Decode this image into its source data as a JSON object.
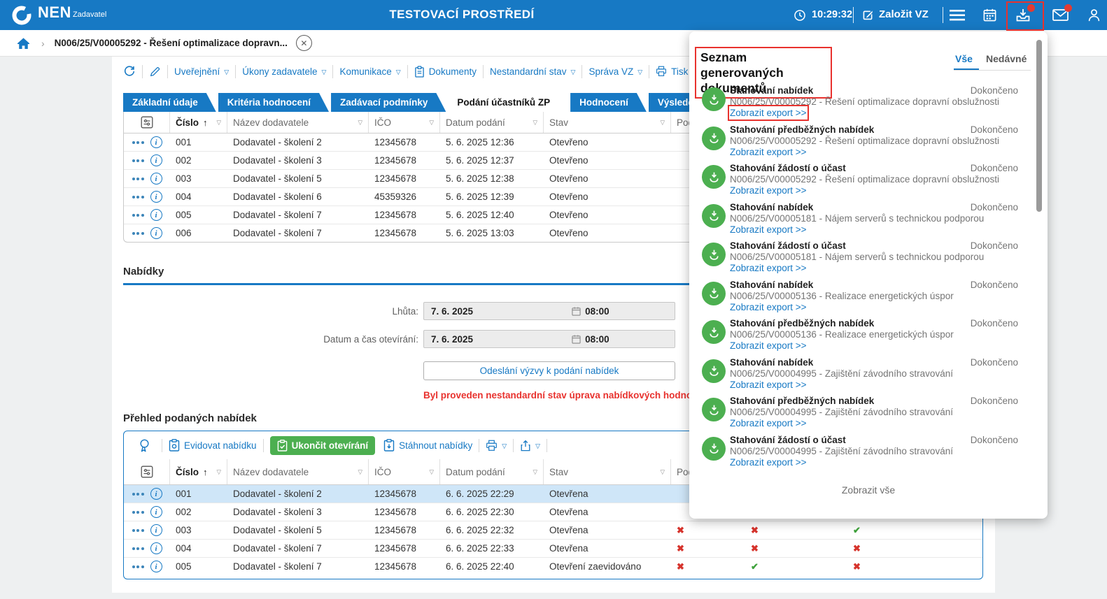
{
  "colors": {
    "accent_blue": "#1779c4",
    "green": "#4caf50",
    "red_annotation": "#e8322e",
    "red_mark": "#d6332c",
    "green_mark": "#3fa23c",
    "selected_row": "#cfe6f8"
  },
  "header": {
    "logo": "NEN",
    "logo_sub": "Zadavatel",
    "env_title": "TESTOVACÍ PROSTŘEDÍ",
    "time": "10:29:32",
    "create_vz_label": "Založit VZ"
  },
  "breadcrumb": {
    "item": "N006/25/V00005292 - Řešení optimalizace dopravn...",
    "chevron": "›"
  },
  "menu": {
    "items": [
      "Uveřejnění",
      "Úkony zadavatele",
      "Komunikace",
      "Dokumenty",
      "Nestandardní stav",
      "Správa VZ",
      "Tisk záznamu"
    ]
  },
  "tabs": [
    {
      "label": "Základní údaje",
      "active": false
    },
    {
      "label": "Kritéria hodnocení",
      "active": false
    },
    {
      "label": "Zadávací podmínky",
      "active": false
    },
    {
      "label": "Podání účastníků ZP",
      "active": true
    },
    {
      "label": "Hodnocení",
      "active": false
    },
    {
      "label": "Výsledek z",
      "active": false
    }
  ],
  "table1": {
    "columns": [
      {
        "label": "Číslo"
      },
      {
        "label": "Název dodavatele"
      },
      {
        "label": "IČO"
      },
      {
        "label": "Datum podání"
      },
      {
        "label": "Stav"
      },
      {
        "label": "Podaná"
      }
    ],
    "rows": [
      {
        "num": "001",
        "name": "Dodavatel - školení 2",
        "ico": "12345678",
        "date": "5. 6. 2025 12:36",
        "status": "Otevřeno",
        "selected": false,
        "marks": [
          null,
          null,
          null
        ]
      },
      {
        "num": "002",
        "name": "Dodavatel - školení 3",
        "ico": "12345678",
        "date": "5. 6. 2025 12:37",
        "status": "Otevřeno",
        "selected": false,
        "marks": [
          null,
          null,
          null
        ]
      },
      {
        "num": "003",
        "name": "Dodavatel - školení 5",
        "ico": "12345678",
        "date": "5. 6. 2025 12:38",
        "status": "Otevřeno",
        "selected": false,
        "marks": [
          null,
          null,
          null
        ]
      },
      {
        "num": "004",
        "name": "Dodavatel - školení 6",
        "ico": "45359326",
        "date": "5. 6. 2025 12:39",
        "status": "Otevřeno",
        "selected": false,
        "marks": [
          null,
          null,
          null
        ]
      },
      {
        "num": "005",
        "name": "Dodavatel - školení 7",
        "ico": "12345678",
        "date": "5. 6. 2025 12:40",
        "status": "Otevřeno",
        "selected": false,
        "marks": [
          null,
          null,
          null
        ]
      },
      {
        "num": "006",
        "name": "Dodavatel - školení 7",
        "ico": "12345678",
        "date": "5. 6. 2025 13:03",
        "status": "Otevřeno",
        "selected": false,
        "marks": [
          null,
          null,
          null
        ]
      }
    ]
  },
  "offers": {
    "title": "Nabídky",
    "deadline_label": "Lhůta:",
    "deadline_date": "7. 6. 2025",
    "deadline_time": "08:00",
    "opening_label": "Datum a čas otevírání:",
    "opening_date": "7. 6. 2025",
    "opening_time": "08:00",
    "send_button": "Odeslání výzvy k podání nabídek",
    "warning": "Byl proveden nestandardní stav úprava nabídkových hodnot podá"
  },
  "submitted": {
    "title": "Přehled podaných nabídek",
    "toolbar": {
      "record": "Evidovat nabídku",
      "finish": "Ukončit otevírání",
      "download": "Stáhnout nabídky"
    },
    "columns": [
      {
        "label": "Číslo"
      },
      {
        "label": "Název dodavatele"
      },
      {
        "label": "IČO"
      },
      {
        "label": "Datum podání"
      },
      {
        "label": "Stav"
      },
      {
        "label": "Podaná"
      }
    ],
    "rows": [
      {
        "num": "001",
        "name": "Dodavatel - školení 2",
        "ico": "12345678",
        "date": "6. 6. 2025 22:29",
        "status": "Otevřena",
        "selected": true,
        "marks": [
          null,
          null,
          null
        ]
      },
      {
        "num": "002",
        "name": "Dodavatel - školení 3",
        "ico": "12345678",
        "date": "6. 6. 2025 22:30",
        "status": "Otevřena",
        "selected": false,
        "marks": [
          null,
          null,
          null
        ]
      },
      {
        "num": "003",
        "name": "Dodavatel - školení 5",
        "ico": "12345678",
        "date": "6. 6. 2025 22:32",
        "status": "Otevřena",
        "selected": false,
        "marks": [
          "x",
          "x",
          "ok"
        ]
      },
      {
        "num": "004",
        "name": "Dodavatel - školení 7",
        "ico": "12345678",
        "date": "6. 6. 2025 22:33",
        "status": "Otevřena",
        "selected": false,
        "marks": [
          "x",
          "x",
          "x"
        ]
      },
      {
        "num": "005",
        "name": "Dodavatel - školení 7",
        "ico": "12345678",
        "date": "6. 6. 2025 22:40",
        "status": "Otevření zaevidováno",
        "selected": false,
        "marks": [
          "x",
          "ok",
          "x"
        ]
      }
    ]
  },
  "panel": {
    "title": "Seznam generovaných dokumentů",
    "tab_all": "Vše",
    "tab_recent": "Nedávné",
    "link_label": "Zobrazit export >>",
    "footer": "Zobrazit vše",
    "items": [
      {
        "title": "Stahování nabídek",
        "subject": "N006/25/V00005292 - Řešení optimalizace dopravní obslužnosti",
        "status": "Dokončeno",
        "annotated": true
      },
      {
        "title": "Stahování předběžných nabídek",
        "subject": "N006/25/V00005292 - Řešení optimalizace dopravní obslužnosti",
        "status": "Dokončeno",
        "annotated": false
      },
      {
        "title": "Stahování žádostí o účast",
        "subject": "N006/25/V00005292 - Řešení optimalizace dopravní obslužnosti",
        "status": "Dokončeno",
        "annotated": false
      },
      {
        "title": "Stahování nabídek",
        "subject": "N006/25/V00005181 - Nájem serverů s technickou podporou",
        "status": "Dokončeno",
        "annotated": false
      },
      {
        "title": "Stahování žádostí o účast",
        "subject": "N006/25/V00005181 - Nájem serverů s technickou podporou",
        "status": "Dokončeno",
        "annotated": false
      },
      {
        "title": "Stahování nabídek",
        "subject": "N006/25/V00005136 - Realizace energetických úspor",
        "status": "Dokončeno",
        "annotated": false
      },
      {
        "title": "Stahování předběžných nabídek",
        "subject": "N006/25/V00005136 - Realizace energetických úspor",
        "status": "Dokončeno",
        "annotated": false
      },
      {
        "title": "Stahování nabídek",
        "subject": "N006/25/V00004995 - Zajištění závodního stravování",
        "status": "Dokončeno",
        "annotated": false
      },
      {
        "title": "Stahování předběžných nabídek",
        "subject": "N006/25/V00004995 - Zajištění závodního stravování",
        "status": "Dokončeno",
        "annotated": false
      },
      {
        "title": "Stahování žádostí o účast",
        "subject": "N006/25/V00004995 - Zajištění závodního stravování",
        "status": "Dokončeno",
        "annotated": false
      }
    ]
  }
}
